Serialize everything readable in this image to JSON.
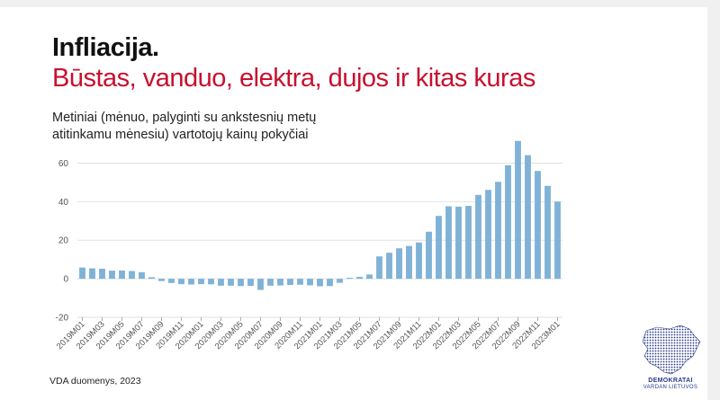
{
  "header": {
    "title": "Infliacija.",
    "subtitle": "Būstas, vanduo, elektra, dujos ir kitas kuras"
  },
  "chart_data": {
    "type": "bar",
    "title": "Metiniai (mėnuo, palyginti su ankstesnių metų atitinkamu mėnesiu) vartotojų kainų pokyčiai",
    "xlabel": "",
    "ylabel": "",
    "ylim": [
      -20,
      70
    ],
    "yticks": [
      -20,
      0,
      20,
      40,
      60
    ],
    "grid": true,
    "legend": "none",
    "bar_color": "#7fb2d6",
    "categories": [
      "2019M01",
      "2019M02",
      "2019M03",
      "2019M04",
      "2019M05",
      "2019M06",
      "2019M07",
      "2019M08",
      "2019M09",
      "2019M10",
      "2019M11",
      "2019M12",
      "2020M01",
      "2020M02",
      "2020M03",
      "2020M04",
      "2020M05",
      "2020M06",
      "2020M07",
      "2020M08",
      "2020M09",
      "2020M10",
      "2020M11",
      "2020M12",
      "2021M01",
      "2021M02",
      "2021M03",
      "2021M04",
      "2021M05",
      "2021M06",
      "2021M07",
      "2021M08",
      "2021M09",
      "2021M10",
      "2021M11",
      "2021M12",
      "2022M01",
      "2022M02",
      "2022M03",
      "2022M04",
      "2022M05",
      "2022M06",
      "2022M07",
      "2022M08",
      "2022M09",
      "2022M10",
      "2022M11",
      "2022M12",
      "2023M01"
    ],
    "tick_labels": [
      "2019M01",
      "2019M03",
      "2019M05",
      "2019M07",
      "2019M09",
      "2019M11",
      "2020M01",
      "2020M03",
      "2020M05",
      "2020M07",
      "2020M09",
      "2020M11",
      "2021M01",
      "2021M03",
      "2021M05",
      "2021M07",
      "2021M09",
      "2021M11",
      "2022M01",
      "2022M03",
      "2022M05",
      "2022M07",
      "2022M09",
      "2022M11",
      "2023M01"
    ],
    "values": [
      5.8,
      5.4,
      5.2,
      4.2,
      4.3,
      4.0,
      3.4,
      0.8,
      -1.2,
      -2.2,
      -2.8,
      -3.0,
      -2.8,
      -2.9,
      -3.6,
      -3.6,
      -3.8,
      -3.7,
      -5.8,
      -3.6,
      -3.5,
      -3.2,
      -3.1,
      -3.4,
      -3.9,
      -3.8,
      -2.1,
      0.5,
      1.0,
      2.2,
      11.6,
      13.5,
      15.8,
      17.0,
      18.8,
      24.4,
      32.6,
      37.6,
      37.4,
      37.8,
      43.5,
      46.1,
      50.3,
      58.9,
      71.5,
      64.1,
      55.9,
      48.2,
      40.0
    ]
  },
  "footer": {
    "source": "VDA duomenys, 2023"
  },
  "logo": {
    "line1": "DEMOKRATAI",
    "line2": "VARDAN LIETUVOS",
    "color": "#2a3a8c"
  }
}
